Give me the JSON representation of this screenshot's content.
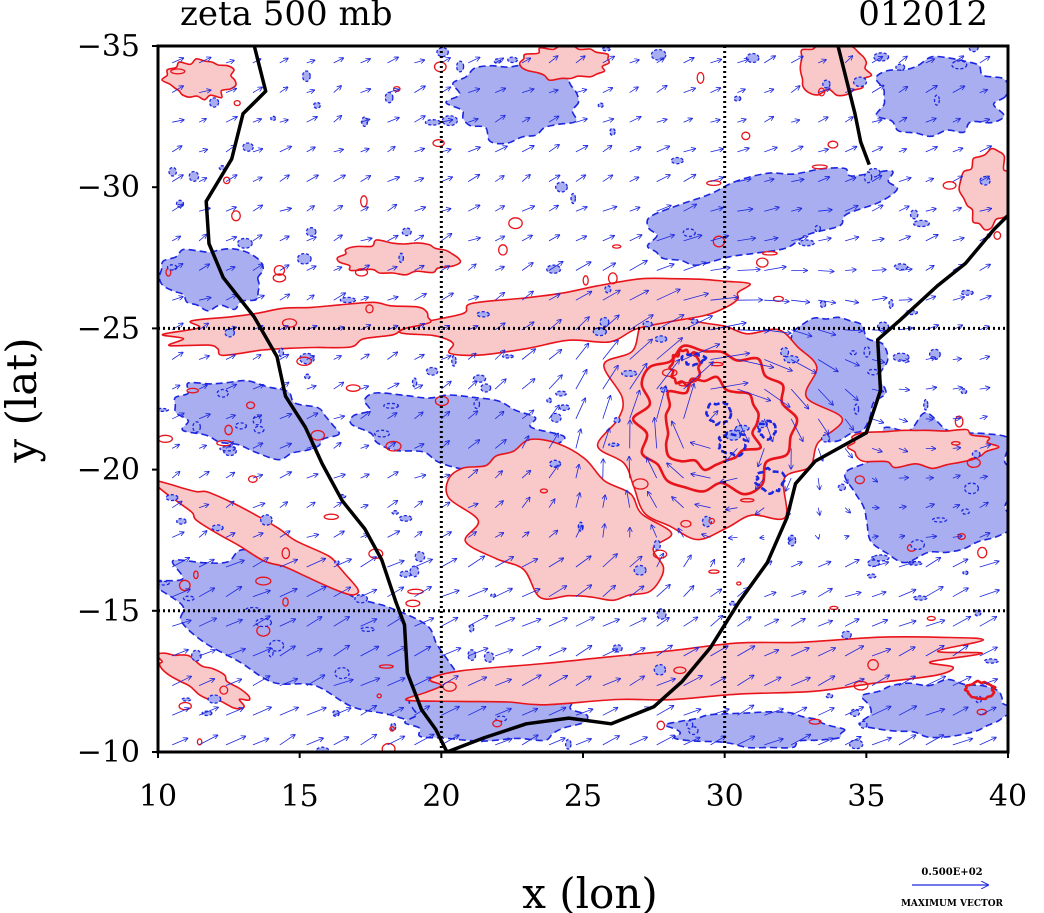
{
  "chart_data": {
    "type": "contour_map",
    "title": "zeta 500 mb",
    "timestamp": "012012",
    "xlabel": "x (lon)",
    "ylabel": "y (lat)",
    "xlim": [
      10,
      40
    ],
    "ylim": [
      -10,
      -35
    ],
    "xticks": [
      "10",
      "15",
      "20",
      "25",
      "30",
      "35",
      "40"
    ],
    "yticks": [
      "−35",
      "−30",
      "−25",
      "−20",
      "−15",
      "−10"
    ],
    "grid_lines": {
      "lon": [
        20,
        30
      ],
      "lat": [
        -25,
        -15
      ]
    },
    "vector_key": {
      "value": "0.500E+02",
      "label": "MAXIMUM VECTOR"
    },
    "colors": {
      "positive_fill": "#f9c8c8",
      "positive_line": "#e8141c",
      "negative_fill": "#a8aef0",
      "negative_line": "#1c26e0",
      "vectors": "#1c26e0",
      "coastline": "#000000"
    },
    "coastline": [
      [
        13.4,
        -35
      ],
      [
        13.8,
        -33.4
      ],
      [
        13.0,
        -32.6
      ],
      [
        12.6,
        -31.0
      ],
      [
        11.7,
        -29.5
      ],
      [
        11.8,
        -28.0
      ],
      [
        12.3,
        -26.8
      ],
      [
        13.4,
        -25.4
      ],
      [
        14.2,
        -24.0
      ],
      [
        14.5,
        -22.6
      ],
      [
        15.2,
        -21.5
      ],
      [
        15.8,
        -20.2
      ],
      [
        16.5,
        -18.9
      ],
      [
        17.3,
        -17.9
      ],
      [
        17.9,
        -16.8
      ],
      [
        18.4,
        -15.3
      ],
      [
        18.7,
        -14.5
      ],
      [
        18.8,
        -12.8
      ],
      [
        19.3,
        -11.5
      ],
      [
        19.8,
        -10.8
      ],
      [
        20.2,
        -10.0
      ],
      [
        21.5,
        -10.5
      ],
      [
        23.0,
        -11.0
      ],
      [
        24.5,
        -11.2
      ],
      [
        26.0,
        -11.0
      ],
      [
        27.5,
        -11.6
      ],
      [
        28.5,
        -12.5
      ],
      [
        29.5,
        -13.7
      ],
      [
        30.5,
        -15.3
      ],
      [
        31.5,
        -16.7
      ],
      [
        32.2,
        -18.3
      ],
      [
        32.5,
        -19.5
      ],
      [
        33.2,
        -20.3
      ],
      [
        35.0,
        -21.3
      ],
      [
        35.5,
        -22.8
      ],
      [
        35.4,
        -24.6
      ],
      [
        36.2,
        -25.3
      ],
      [
        37.5,
        -26.5
      ],
      [
        38.5,
        -27.3
      ],
      [
        39.5,
        -28.5
      ],
      [
        40.0,
        -29.0
      ]
    ],
    "coastline_ne": [
      [
        34.0,
        -35
      ],
      [
        34.3,
        -33.8
      ],
      [
        34.6,
        -32.6
      ],
      [
        34.8,
        -31.6
      ],
      [
        35.1,
        -30.8
      ]
    ],
    "positive_regions": [
      {
        "cx": 29.6,
        "cy": -21.8,
        "rx": 4.0,
        "ry": 3.8
      },
      {
        "cx": 24.3,
        "cy": -18.0,
        "rx": 4.3,
        "ry": 2.4,
        "rot": 30
      },
      {
        "cx": 25.0,
        "cy": -25.5,
        "rx": 6.0,
        "ry": 1.0,
        "rot": -8
      },
      {
        "cx": 29.2,
        "cy": -12.8,
        "rx": 10.0,
        "ry": 0.9,
        "rot": -4
      },
      {
        "cx": 15.0,
        "cy": -25.0,
        "rx": 4.5,
        "ry": 0.8,
        "rot": -5
      },
      {
        "cx": 18.5,
        "cy": -27.5,
        "rx": 2.0,
        "ry": 0.6
      },
      {
        "cx": 11.5,
        "cy": -33.8,
        "rx": 1.2,
        "ry": 0.7
      },
      {
        "cx": 24.4,
        "cy": -34.4,
        "rx": 1.5,
        "ry": 0.6
      },
      {
        "cx": 33.8,
        "cy": -34.2,
        "rx": 1.3,
        "ry": 0.9
      },
      {
        "cx": 39.3,
        "cy": -29.9,
        "rx": 0.9,
        "ry": 1.3
      },
      {
        "cx": 13.6,
        "cy": -17.6,
        "rx": 3.8,
        "ry": 0.6,
        "rot": 28
      },
      {
        "cx": 11.5,
        "cy": -12.6,
        "rx": 1.8,
        "ry": 0.5,
        "rot": 28
      },
      {
        "cx": 37.0,
        "cy": -20.8,
        "rx": 2.5,
        "ry": 0.7
      }
    ],
    "negative_regions": [
      {
        "cx": 15.6,
        "cy": -14.2,
        "rx": 5.8,
        "ry": 2.0,
        "rot": 22
      },
      {
        "cx": 21.8,
        "cy": -11.3,
        "rx": 3.0,
        "ry": 1.0
      },
      {
        "cx": 13.3,
        "cy": -21.8,
        "rx": 3.0,
        "ry": 1.2,
        "rot": 10
      },
      {
        "cx": 20.5,
        "cy": -21.4,
        "rx": 3.5,
        "ry": 1.2,
        "rot": 8
      },
      {
        "cx": 12.0,
        "cy": -26.8,
        "rx": 1.8,
        "ry": 1.1
      },
      {
        "cx": 31.3,
        "cy": -29.0,
        "rx": 4.5,
        "ry": 1.3,
        "rot": -15
      },
      {
        "cx": 37.5,
        "cy": -19.2,
        "rx": 3.0,
        "ry": 2.5
      },
      {
        "cx": 33.8,
        "cy": -23.3,
        "rx": 1.8,
        "ry": 2.2
      },
      {
        "cx": 22.6,
        "cy": -33.0,
        "rx": 2.2,
        "ry": 1.3
      },
      {
        "cx": 37.6,
        "cy": -33.2,
        "rx": 2.3,
        "ry": 1.3
      },
      {
        "cx": 37.5,
        "cy": -11.5,
        "rx": 2.8,
        "ry": 1.0
      },
      {
        "cx": 31.2,
        "cy": -10.8,
        "rx": 3.0,
        "ry": 0.6
      },
      {
        "cx": 29.5,
        "cy": -21.8,
        "rx": 1.8,
        "ry": 1.8
      }
    ],
    "strong_positive_contours": [
      {
        "cx": 29.6,
        "cy": -21.8,
        "rx": 2.8,
        "ry": 2.6
      },
      {
        "cx": 29.5,
        "cy": -21.6,
        "rx": 1.8,
        "ry": 1.6
      },
      {
        "cx": 28.6,
        "cy": -23.6,
        "rx": 0.5,
        "ry": 0.6
      },
      {
        "cx": 39.0,
        "cy": -12.2,
        "rx": 0.5,
        "ry": 0.3
      }
    ],
    "strong_negative_contours": [
      {
        "cx": 28.9,
        "cy": -23.9,
        "rx": 0.4,
        "ry": 0.2
      },
      {
        "cx": 29.8,
        "cy": -22.0,
        "rx": 0.4,
        "ry": 0.4
      },
      {
        "cx": 30.3,
        "cy": -20.9,
        "rx": 0.5,
        "ry": 0.4
      },
      {
        "cx": 31.6,
        "cy": -19.6,
        "rx": 0.5,
        "ry": 0.4
      },
      {
        "cx": 31.5,
        "cy": -21.4,
        "rx": 0.3,
        "ry": 0.3
      }
    ]
  }
}
